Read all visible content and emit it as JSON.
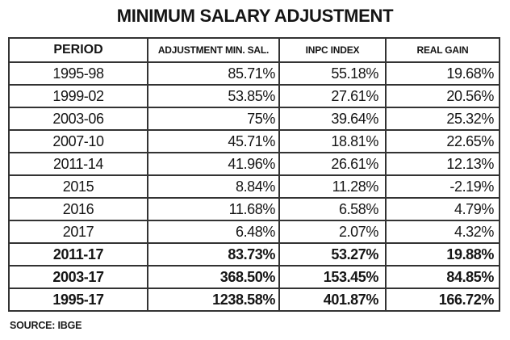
{
  "chart_data": {
    "type": "table",
    "title": "MINIMUM SALARY ADJUSTMENT",
    "columns": [
      "PERIOD",
      "ADJUSTMENT MIN. SAL.",
      "INPC INDEX",
      "REAL GAIN"
    ],
    "rows": [
      [
        "1995-98",
        "85.71%",
        "55.18%",
        "19.68%"
      ],
      [
        "1999-02",
        "53.85%",
        "27.61%",
        "20.56%"
      ],
      [
        "2003-06",
        "75%",
        "39.64%",
        "25.32%"
      ],
      [
        "2007-10",
        "45.71%",
        "18.81%",
        "22.65%"
      ],
      [
        "2011-14",
        "41.96%",
        "26.61%",
        "12.13%"
      ],
      [
        "2015",
        "8.84%",
        "11.28%",
        "-2.19%"
      ],
      [
        "2016",
        "11.68%",
        "6.58%",
        "4.79%"
      ],
      [
        "2017",
        "6.48%",
        "2.07%",
        "4.32%"
      ],
      [
        "2011-17",
        "83.73%",
        "53.27%",
        "19.88%"
      ],
      [
        "2003-17",
        "368.50%",
        "153.45%",
        "84.85%"
      ],
      [
        "1995-17",
        "1238.58%",
        "401.87%",
        "166.72%"
      ]
    ],
    "bold_row_indices": [
      8,
      9,
      10
    ],
    "source": "SOURCE: IBGE",
    "layout_hints": {
      "grid": "on",
      "header_position": "top",
      "value_alignment": "right",
      "period_alignment": "center"
    },
    "colors": {
      "background": "#ffffff",
      "text": "#151515",
      "border": "#333333"
    }
  }
}
